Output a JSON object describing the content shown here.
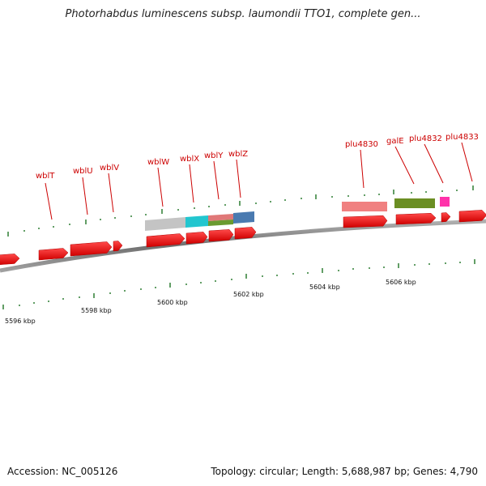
{
  "title": "Photorhabdus luminescens subsp. laumondii TTO1, complete gen...",
  "footer": {
    "accession_label": "Accession:",
    "accession": "NC_005126",
    "topology_label": "Topology:",
    "topology": "circular",
    "length_label": "Length:",
    "length": "5,688,987 bp",
    "genes_label": "Genes:",
    "genes": "4,790"
  },
  "gene_labels": [
    "wblT",
    "wblU",
    "wblV",
    "wblW",
    "wblX",
    "wblY",
    "wblZ",
    "plu4830",
    "galE",
    "plu4832",
    "plu4833"
  ],
  "scale_labels": [
    "5596 kbp",
    "5598 kbp",
    "5600 kbp",
    "5602 kbp",
    "5604 kbp",
    "5606 kbp"
  ],
  "colors": {
    "gene_arrow": "#ff0000",
    "label": "#cc0000",
    "tick": "#2e7d32",
    "backbone": "#808080",
    "function_bars": [
      "#c0c0c0",
      "#20c8d0",
      "#e07878",
      "#6a9a30",
      "#4a7ab0",
      "#f08080",
      "#6b8e23",
      "#ff33aa"
    ]
  }
}
